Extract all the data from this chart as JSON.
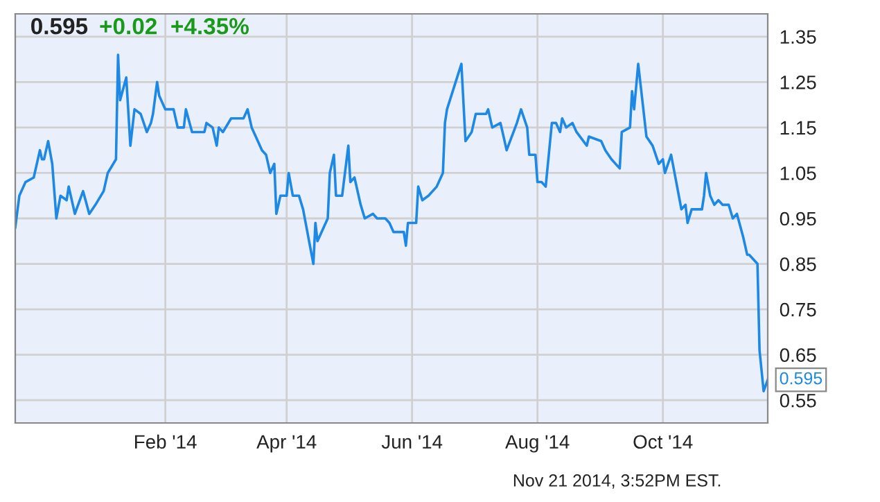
{
  "chart_data": {
    "type": "line",
    "title": "0.595",
    "subtitle": "+0.02  +4.35%",
    "x": [
      "2013-11-20",
      "2013-11-22",
      "2013-11-25",
      "2013-11-29",
      "2013-12-02",
      "2013-12-03",
      "2013-12-04",
      "2013-12-06",
      "2013-12-08",
      "2013-12-10",
      "2013-12-12",
      "2013-12-15",
      "2013-12-16",
      "2013-12-17",
      "2013-12-19",
      "2013-12-23",
      "2013-12-26",
      "2013-12-29",
      "2014-01-02",
      "2014-01-04",
      "2014-01-08",
      "2014-01-09",
      "2014-01-10",
      "2014-01-13",
      "2014-01-15",
      "2014-01-17",
      "2014-01-20",
      "2014-01-23",
      "2014-01-25",
      "2014-01-26",
      "2014-01-28",
      "2014-01-29",
      "2014-02-01",
      "2014-02-05",
      "2014-02-07",
      "2014-02-10",
      "2014-02-11",
      "2014-02-14",
      "2014-02-20",
      "2014-02-21",
      "2014-02-24",
      "2014-02-26",
      "2014-02-27",
      "2014-03-01",
      "2014-03-05",
      "2014-03-11",
      "2014-03-13",
      "2014-03-15",
      "2014-03-17",
      "2014-03-20",
      "2014-03-22",
      "2014-03-24",
      "2014-03-26",
      "2014-03-27",
      "2014-03-29",
      "2014-04-01",
      "2014-04-02",
      "2014-04-04",
      "2014-04-07",
      "2014-04-09",
      "2014-04-14",
      "2014-04-15",
      "2014-04-16",
      "2014-04-21",
      "2014-04-22",
      "2014-04-24",
      "2014-04-25",
      "2014-04-28",
      "2014-05-01",
      "2014-05-02",
      "2014-05-04",
      "2014-05-07",
      "2014-05-09",
      "2014-05-13",
      "2014-05-15",
      "2014-05-19",
      "2014-05-21",
      "2014-05-23",
      "2014-05-28",
      "2014-05-29",
      "2014-05-30",
      "2014-06-03",
      "2014-06-04",
      "2014-06-06",
      "2014-06-09",
      "2014-06-13",
      "2014-06-16",
      "2014-06-17",
      "2014-06-18",
      "2014-06-25",
      "2014-06-27",
      "2014-06-30",
      "2014-07-02",
      "2014-07-07",
      "2014-07-08",
      "2014-07-10",
      "2014-07-14",
      "2014-07-15",
      "2014-07-17",
      "2014-07-22",
      "2014-07-24",
      "2014-07-27",
      "2014-07-28",
      "2014-07-31",
      "2014-08-01",
      "2014-08-03",
      "2014-08-05",
      "2014-08-08",
      "2014-08-10",
      "2014-08-12",
      "2014-08-13",
      "2014-08-15",
      "2014-08-18",
      "2014-08-20",
      "2014-08-25",
      "2014-08-26",
      "2014-09-01",
      "2014-09-03",
      "2014-09-06",
      "2014-09-10",
      "2014-09-11",
      "2014-09-15",
      "2014-09-16",
      "2014-09-17",
      "2014-09-19",
      "2014-09-23",
      "2014-09-26",
      "2014-09-29",
      "2014-10-01",
      "2014-10-02",
      "2014-10-05",
      "2014-10-10",
      "2014-10-12",
      "2014-10-13",
      "2014-10-15",
      "2014-10-17",
      "2014-10-20",
      "2014-10-21",
      "2014-10-22",
      "2014-10-24",
      "2014-10-26",
      "2014-10-28",
      "2014-10-30",
      "2014-11-02",
      "2014-11-04",
      "2014-11-06",
      "2014-11-09",
      "2014-11-11",
      "2014-11-12",
      "2014-11-16",
      "2014-11-17",
      "2014-11-19",
      "2014-11-21"
    ],
    "series": [
      {
        "color": "#1e88e5",
        "values": [
          0.93,
          1.0,
          1.03,
          1.04,
          1.1,
          1.08,
          1.08,
          1.12,
          1.07,
          0.95,
          1.0,
          0.99,
          1.02,
          1.0,
          0.96,
          1.01,
          0.96,
          0.98,
          1.01,
          1.05,
          1.08,
          1.31,
          1.21,
          1.26,
          1.11,
          1.19,
          1.18,
          1.14,
          1.16,
          1.18,
          1.25,
          1.22,
          1.19,
          1.19,
          1.15,
          1.15,
          1.19,
          1.14,
          1.14,
          1.16,
          1.15,
          1.11,
          1.15,
          1.14,
          1.17,
          1.17,
          1.19,
          1.15,
          1.13,
          1.1,
          1.09,
          1.05,
          1.07,
          0.96,
          1.0,
          1.0,
          1.05,
          1.0,
          1.0,
          0.97,
          0.85,
          0.94,
          0.9,
          0.95,
          1.05,
          1.09,
          1.0,
          1.0,
          1.11,
          1.03,
          1.04,
          0.98,
          0.95,
          0.96,
          0.95,
          0.95,
          0.94,
          0.92,
          0.92,
          0.89,
          0.94,
          0.94,
          1.02,
          0.99,
          1.0,
          1.02,
          1.05,
          1.16,
          1.19,
          1.29,
          1.12,
          1.14,
          1.18,
          1.18,
          1.19,
          1.15,
          1.16,
          1.14,
          1.1,
          1.16,
          1.19,
          1.15,
          1.09,
          1.09,
          1.03,
          1.03,
          1.02,
          1.16,
          1.16,
          1.14,
          1.17,
          1.15,
          1.16,
          1.14,
          1.11,
          1.13,
          1.12,
          1.1,
          1.08,
          1.06,
          1.14,
          1.15,
          1.23,
          1.19,
          1.29,
          1.13,
          1.11,
          1.07,
          1.08,
          1.05,
          1.09,
          0.97,
          0.98,
          0.94,
          0.97,
          0.97,
          0.97,
          1.0,
          1.05,
          1.0,
          0.98,
          0.99,
          0.98,
          0.98,
          0.95,
          0.96,
          0.91,
          0.87,
          0.87,
          0.85,
          0.66,
          0.57,
          0.595
        ]
      }
    ],
    "xlim": [
      "2013-11-20",
      "2014-11-21"
    ],
    "xticks": [
      {
        "value": "2014-02-01",
        "label": "Feb '14"
      },
      {
        "value": "2014-04-01",
        "label": "Apr '14"
      },
      {
        "value": "2014-06-01",
        "label": "Jun '14"
      },
      {
        "value": "2014-08-01",
        "label": "Aug '14"
      },
      {
        "value": "2014-10-01",
        "label": "Oct '14"
      }
    ],
    "ylim": [
      0.5,
      1.4
    ],
    "yticks": [
      {
        "value": 0.55,
        "label": "0.55"
      },
      {
        "value": 0.65,
        "label": "0.65"
      },
      {
        "value": 0.75,
        "label": "0.75"
      },
      {
        "value": 0.85,
        "label": "0.85"
      },
      {
        "value": 0.95,
        "label": "0.95"
      },
      {
        "value": 1.05,
        "label": "1.05"
      },
      {
        "value": 1.15,
        "label": "1.15"
      },
      {
        "value": 1.25,
        "label": "1.25"
      },
      {
        "value": 1.35,
        "label": "1.35"
      }
    ],
    "grid": true,
    "legend": false,
    "marker": "none",
    "line_style": "solid",
    "annotations": [
      {
        "text": "0.595",
        "x": "2014-11-21",
        "y": 0.595
      },
      "Nov 21 2014, 3:52PM EST."
    ]
  }
}
